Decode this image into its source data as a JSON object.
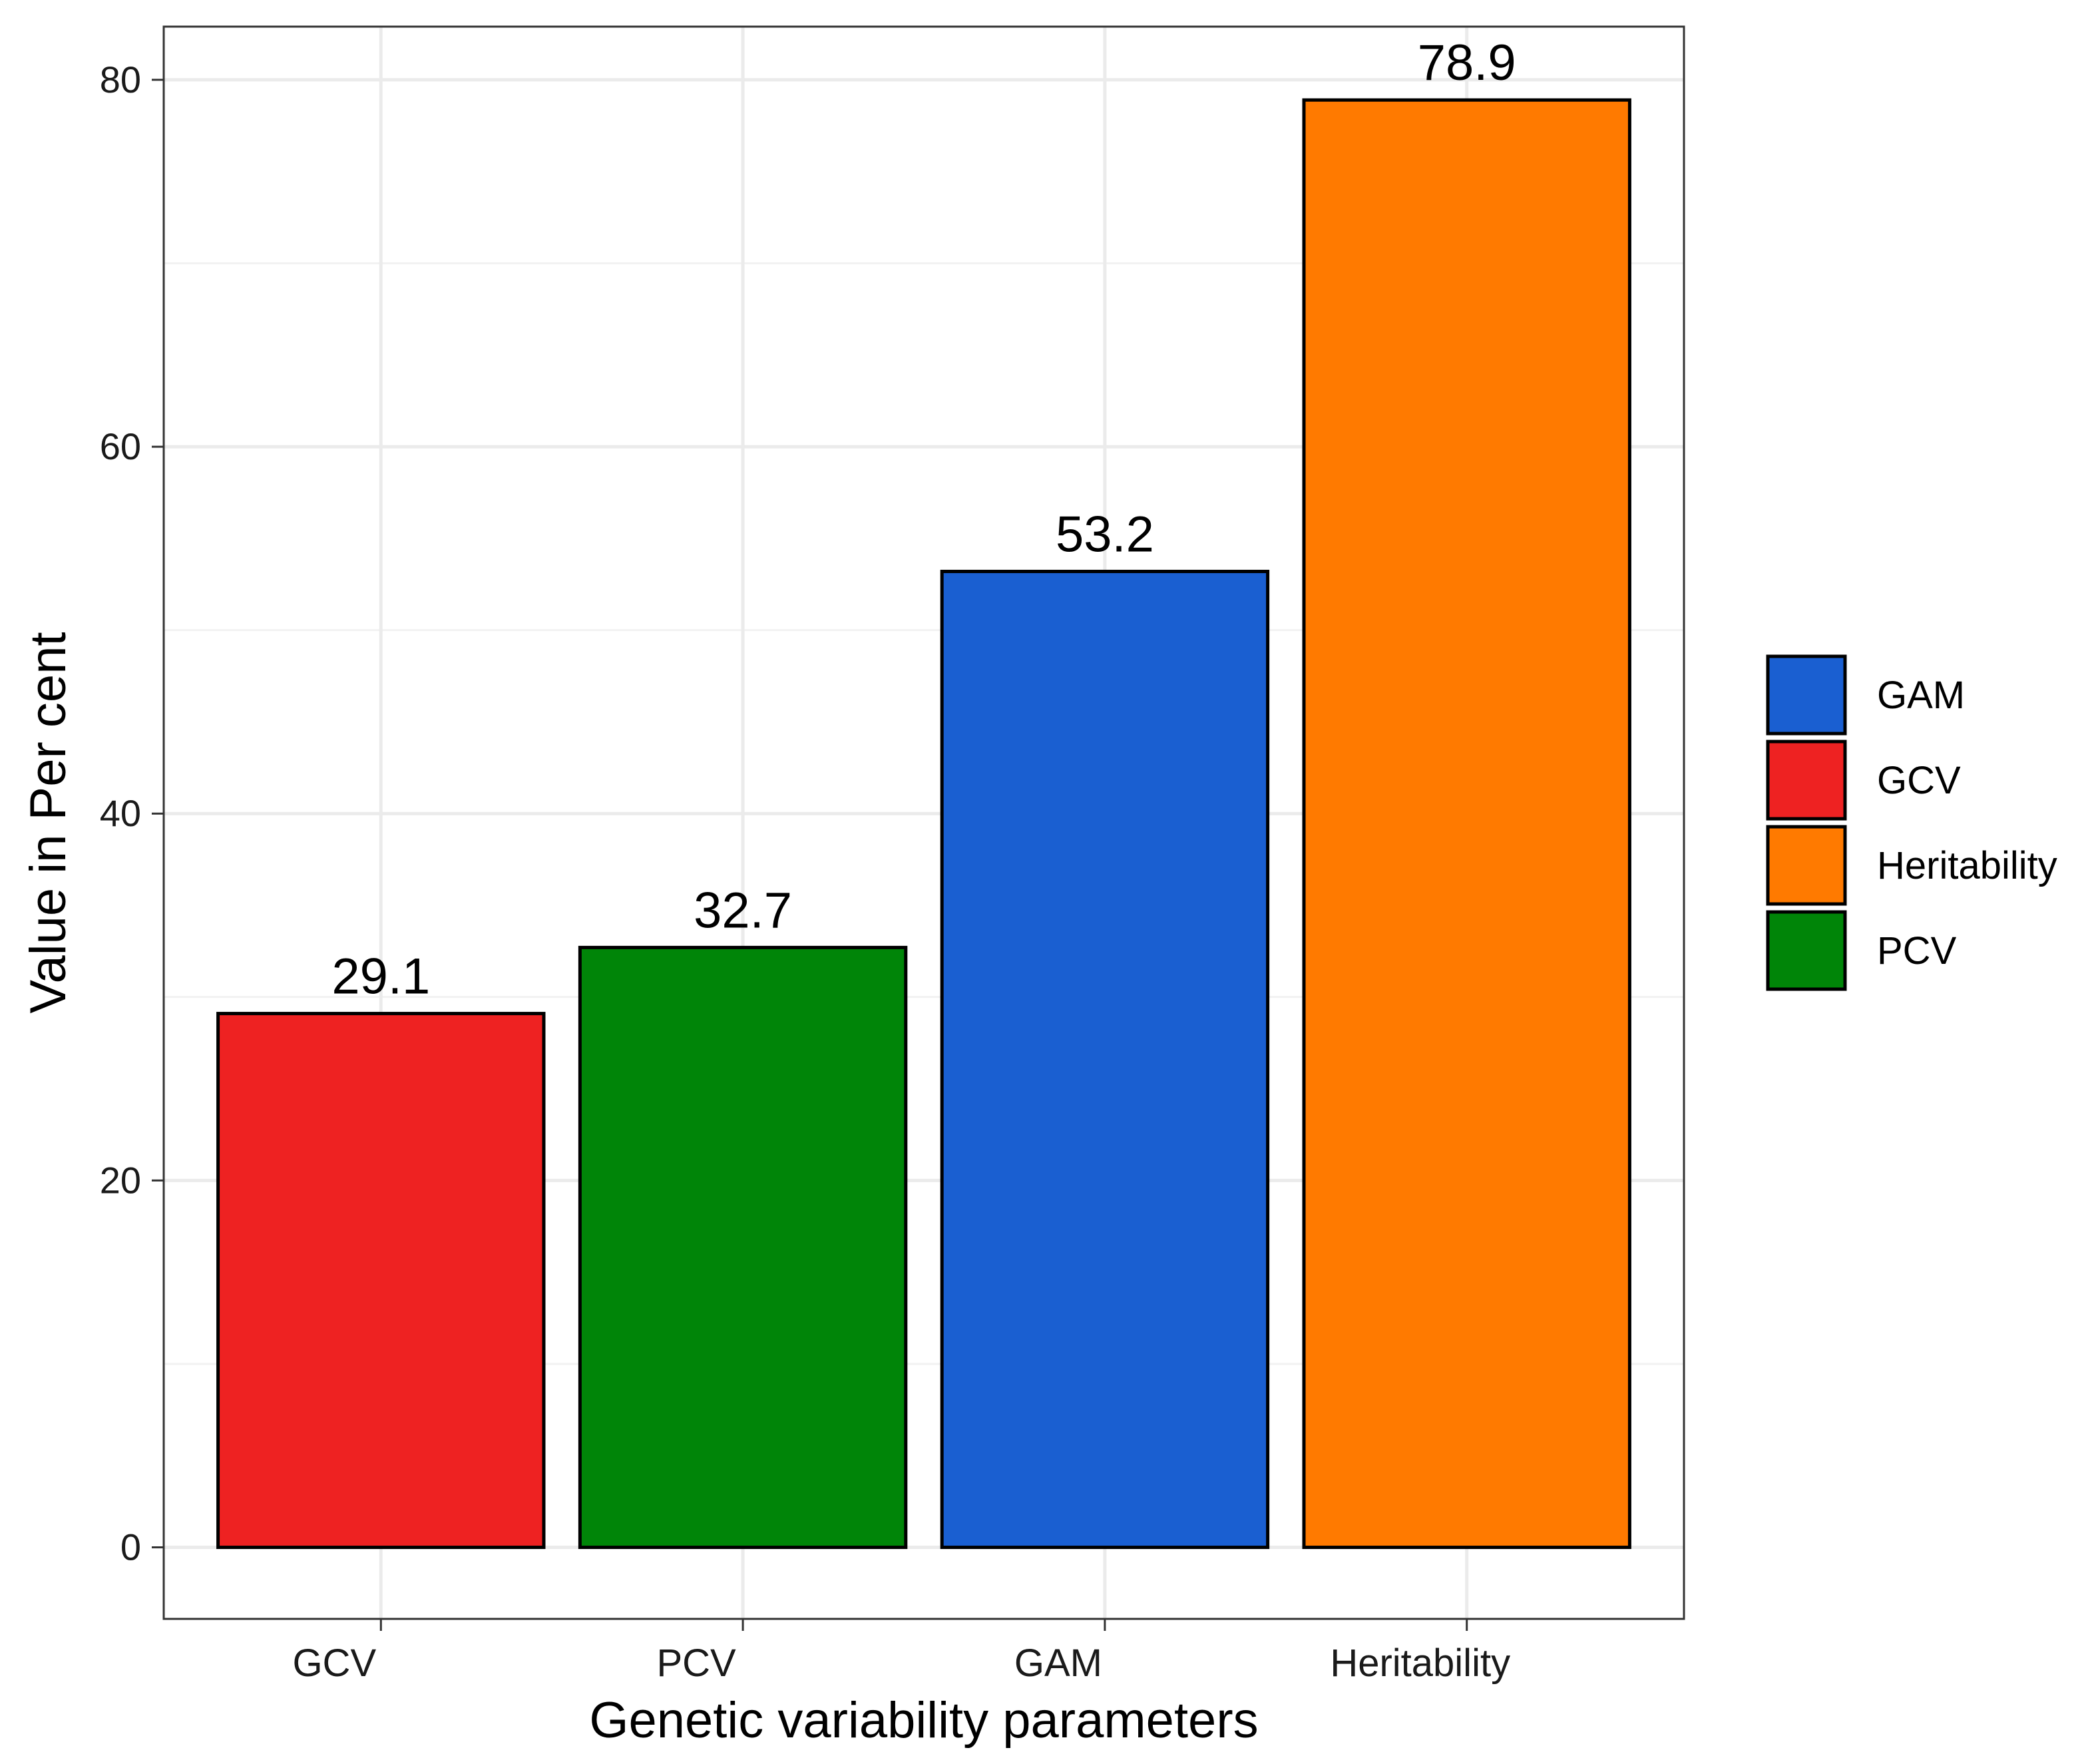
{
  "chart_data": {
    "type": "bar",
    "title": "",
    "xlabel": "Genetic variability parameters",
    "ylabel": "Value in Per cent",
    "categories": [
      "GCV",
      "PCV",
      "GAM",
      "Heritability"
    ],
    "values": [
      29.1,
      32.7,
      53.2,
      78.9
    ],
    "value_labels": [
      "29.1",
      "32.7",
      "53.2",
      "78.9"
    ],
    "colors": {
      "GCV": "#EE2222",
      "PCV": "#008508",
      "GAM": "#1A5FD1",
      "Heritability": "#FF7A00"
    },
    "ylim": [
      -3.9,
      82.9
    ],
    "yticks": [
      0,
      20,
      40,
      60,
      80
    ],
    "ytick_labels": [
      "0",
      "20",
      "40",
      "60",
      "80"
    ],
    "grid": true,
    "legend": {
      "placement": "right",
      "entries": [
        "GAM",
        "GCV",
        "Heritability",
        "PCV"
      ]
    }
  }
}
